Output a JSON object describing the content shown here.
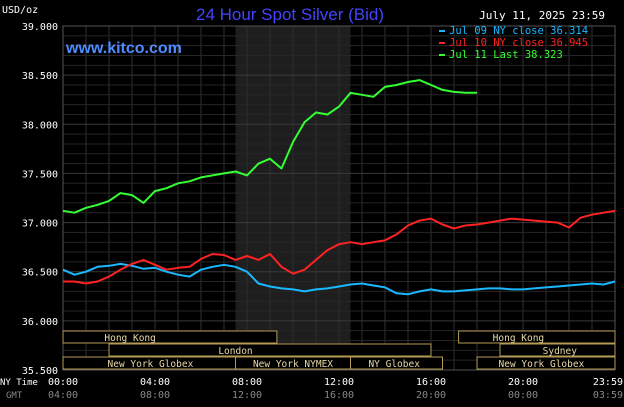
{
  "chart_data": {
    "type": "line",
    "title": "24 Hour Spot Silver (Bid)",
    "date_label": "July 11, 2025 23:59",
    "watermark": "www.kitco.com",
    "ylabel": "USD/oz",
    "y_ticks": [
      "39.000",
      "38.500",
      "38.000",
      "37.500",
      "37.000",
      "36.500",
      "36.000",
      "35.500"
    ],
    "ylim": [
      35.5,
      39.0
    ],
    "xlim": [
      0,
      24
    ],
    "x_ticks_ny": [
      "00:00",
      "04:00",
      "08:00",
      "12:00",
      "16:00",
      "20:00",
      "23:59"
    ],
    "x_ticks_gmt": [
      "04:00",
      "08:00",
      "12:00",
      "16:00",
      "20:00",
      "00:00",
      "03:59"
    ],
    "x_axis_label_ny": "NY Time",
    "x_axis_label_gmt": "GMT",
    "grid": true,
    "shaded_region_hours": [
      7.5,
      12.5
    ],
    "legend": [
      {
        "label": "Jul 09 NY close 36.314",
        "color": "#19b8ff"
      },
      {
        "label": "Jul 10 NY close 36.945",
        "color": "#ff2222"
      },
      {
        "label": "Jul 11 Last 38.323",
        "color": "#33ff33"
      }
    ],
    "series": [
      {
        "name": "Jul 09",
        "color": "#19b8ff",
        "x": [
          0,
          0.5,
          1,
          1.5,
          2,
          2.5,
          3,
          3.5,
          4,
          4.5,
          5,
          5.5,
          6,
          6.5,
          7,
          7.5,
          8,
          8.5,
          9,
          9.5,
          10,
          10.5,
          11,
          11.5,
          12,
          12.5,
          13,
          13.5,
          14,
          14.5,
          15,
          15.5,
          16,
          16.5,
          17,
          17.5,
          18,
          18.5,
          19,
          19.5,
          20,
          20.5,
          21,
          21.5,
          22,
          22.5,
          23,
          23.5,
          24
        ],
        "y": [
          36.52,
          36.47,
          36.5,
          36.55,
          36.56,
          36.58,
          36.56,
          36.53,
          36.54,
          36.5,
          36.47,
          36.45,
          36.52,
          36.55,
          36.57,
          36.55,
          36.5,
          36.38,
          36.35,
          36.33,
          36.32,
          36.3,
          36.32,
          36.33,
          36.35,
          36.37,
          36.38,
          36.36,
          36.34,
          36.28,
          36.27,
          36.3,
          36.32,
          36.3,
          36.3,
          36.31,
          36.32,
          36.33,
          36.33,
          36.32,
          36.32,
          36.33,
          36.34,
          36.35,
          36.36,
          36.37,
          36.38,
          36.37,
          36.4
        ]
      },
      {
        "name": "Jul 10",
        "color": "#ff2222",
        "x": [
          0,
          0.5,
          1,
          1.5,
          2,
          2.5,
          3,
          3.5,
          4,
          4.5,
          5,
          5.5,
          6,
          6.5,
          7,
          7.5,
          8,
          8.5,
          9,
          9.5,
          10,
          10.5,
          11,
          11.5,
          12,
          12.5,
          13,
          13.5,
          14,
          14.5,
          15,
          15.5,
          16,
          16.5,
          17,
          17.5,
          18,
          18.5,
          19,
          19.5,
          20,
          20.5,
          21,
          21.5,
          22,
          22.5,
          23,
          23.5,
          24
        ],
        "y": [
          36.4,
          36.4,
          36.38,
          36.4,
          36.45,
          36.52,
          36.58,
          36.62,
          36.57,
          36.52,
          36.54,
          36.55,
          36.63,
          36.68,
          36.67,
          36.62,
          36.66,
          36.62,
          36.68,
          36.55,
          36.48,
          36.52,
          36.62,
          36.72,
          36.78,
          36.8,
          36.78,
          36.8,
          36.82,
          36.88,
          36.97,
          37.02,
          37.04,
          36.98,
          36.94,
          36.97,
          36.98,
          37.0,
          37.02,
          37.04,
          37.03,
          37.02,
          37.01,
          37.0,
          36.95,
          37.05,
          37.08,
          37.1,
          37.12
        ]
      },
      {
        "name": "Jul 11",
        "color": "#33ff33",
        "x": [
          0,
          0.5,
          1,
          1.5,
          2,
          2.5,
          3,
          3.5,
          4,
          4.5,
          5,
          5.5,
          6,
          6.5,
          7,
          7.5,
          8,
          8.5,
          9,
          9.5,
          10,
          10.5,
          11,
          11.5,
          12,
          12.5,
          13,
          13.5,
          14,
          14.5,
          15,
          15.5,
          16,
          16.5,
          17,
          17.5,
          18
        ],
        "y": [
          37.12,
          37.1,
          37.15,
          37.18,
          37.22,
          37.3,
          37.28,
          37.2,
          37.32,
          37.35,
          37.4,
          37.42,
          37.46,
          37.48,
          37.5,
          37.52,
          37.48,
          37.6,
          37.65,
          37.55,
          37.82,
          38.02,
          38.12,
          38.1,
          38.18,
          38.32,
          38.3,
          38.28,
          38.38,
          38.4,
          38.43,
          38.45,
          38.4,
          38.35,
          38.33,
          38.32,
          38.32
        ]
      }
    ]
  },
  "session_bars": {
    "row1_left": "Hong Kong",
    "row1_right": "Hong Kong",
    "row2_center": "London",
    "row2_right": "Sydney",
    "row3_left": "New York Globex",
    "row3_mid": "New York NYMEX",
    "row3_mid2": "NY Globex",
    "row3_right": "New York Globex"
  }
}
